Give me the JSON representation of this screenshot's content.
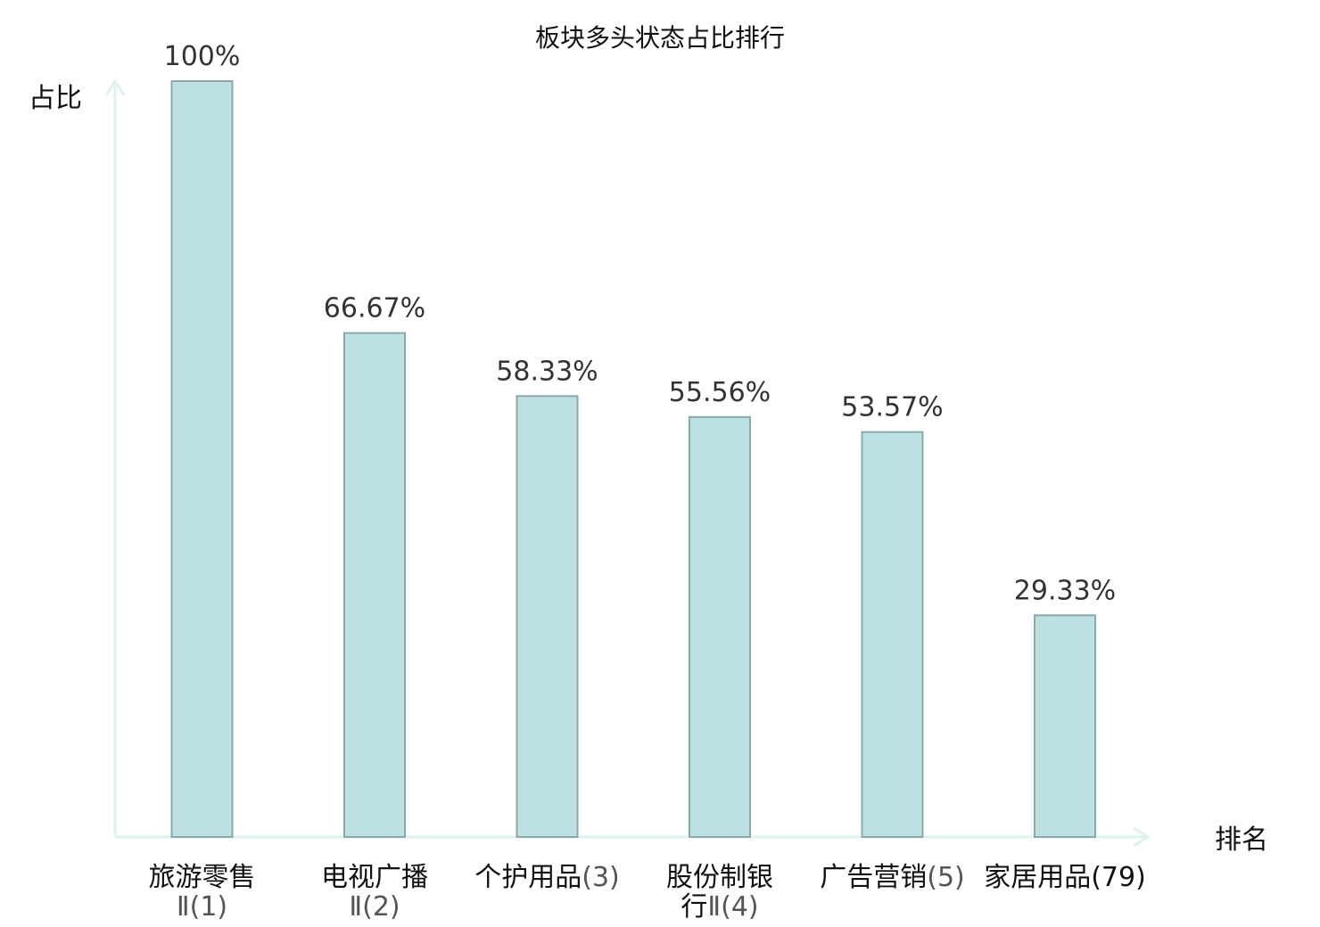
{
  "chart_data": {
    "type": "bar",
    "title": "板块多头状态占比排行",
    "ylabel": "占比",
    "xlabel": "排名",
    "ylim": [
      0,
      100
    ],
    "grid": false,
    "colors": {
      "bar_fill": "#bde0e3",
      "bar_stroke": "#8aa9ac",
      "axis": "#def2ef",
      "highlight": "#dd1111"
    },
    "categories": [
      {
        "name_lines": [
          "旅游零售",
          "Ⅱ(1)"
        ],
        "highlight": false
      },
      {
        "name_lines": [
          "电视广播",
          "Ⅱ(2)"
        ],
        "highlight": false
      },
      {
        "name_lines": [
          "个护用品(3)"
        ],
        "highlight": false
      },
      {
        "name_lines": [
          "股份制银",
          "行Ⅱ(4)"
        ],
        "highlight": false
      },
      {
        "name_lines": [
          "广告营销(5)"
        ],
        "highlight": false
      },
      {
        "name_lines": [
          "家居用品(79)"
        ],
        "highlight": true
      }
    ],
    "values": [
      100,
      66.67,
      58.33,
      55.56,
      53.57,
      29.33
    ],
    "value_labels": [
      "100%",
      "66.67%",
      "58.33%",
      "55.56%",
      "53.57%",
      "29.33%"
    ]
  }
}
